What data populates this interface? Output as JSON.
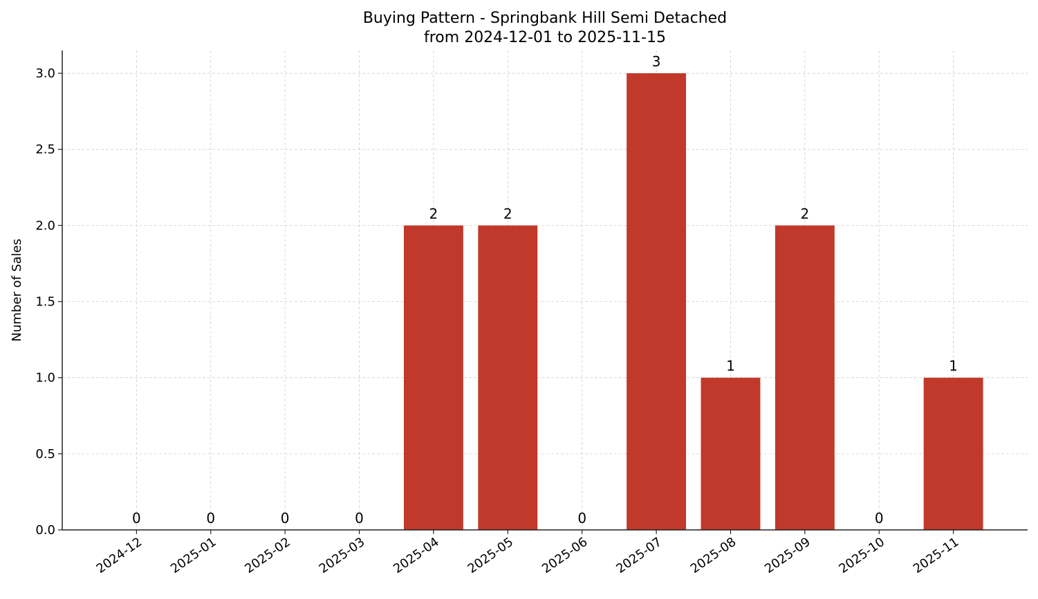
{
  "chart_data": {
    "type": "bar",
    "title": "Buying Pattern - Springbank Hill Semi Detached",
    "subtitle": "from 2024-12-01 to 2025-11-15",
    "xlabel": "",
    "ylabel": "Number of Sales",
    "categories": [
      "2024-12",
      "2025-01",
      "2025-02",
      "2025-03",
      "2025-04",
      "2025-05",
      "2025-06",
      "2025-07",
      "2025-08",
      "2025-09",
      "2025-10",
      "2025-11"
    ],
    "values": [
      0,
      0,
      0,
      0,
      2,
      2,
      0,
      3,
      1,
      2,
      0,
      1
    ],
    "ylim": [
      0,
      3.15
    ],
    "yticks": [
      "0.0",
      "0.5",
      "1.0",
      "1.5",
      "2.0",
      "2.5",
      "3.0"
    ],
    "grid": true,
    "bar_color": "#c0392b"
  }
}
